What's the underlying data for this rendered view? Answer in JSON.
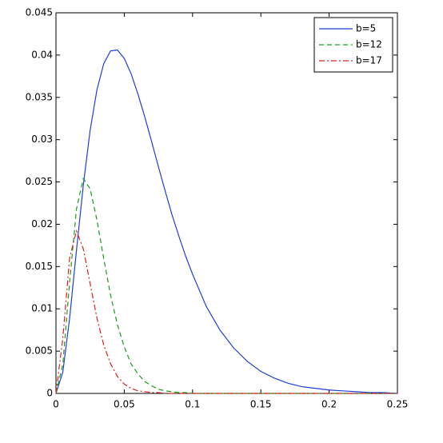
{
  "chart_data": {
    "type": "line",
    "x": [
      0,
      0.005,
      0.01,
      0.015,
      0.02,
      0.025,
      0.03,
      0.035,
      0.04,
      0.045,
      0.05,
      0.055,
      0.06,
      0.065,
      0.07,
      0.075,
      0.08,
      0.085,
      0.09,
      0.095,
      0.1,
      0.11,
      0.12,
      0.13,
      0.14,
      0.15,
      0.16,
      0.17,
      0.18,
      0.19,
      0.2,
      0.21,
      0.22,
      0.23,
      0.24,
      0.25
    ],
    "series": [
      {
        "name": "b=5",
        "color": "#1f3fd8",
        "dash": "solid",
        "values": [
          0,
          0.0025,
          0.0089,
          0.0169,
          0.0246,
          0.0311,
          0.0359,
          0.039,
          0.0405,
          0.0406,
          0.0396,
          0.0378,
          0.0354,
          0.0327,
          0.0298,
          0.0268,
          0.0239,
          0.0211,
          0.0186,
          0.0162,
          0.0141,
          0.0103,
          0.0075,
          0.0054,
          0.0038,
          0.0026,
          0.0018,
          0.0012,
          0.0008,
          0.0006,
          0.0004,
          0.0003,
          0.0002,
          0.0001,
          0.0001,
          0
        ]
      },
      {
        "name": "b=12",
        "color": "#1a9a1a",
        "dash": "dashed",
        "values": [
          0,
          0.0034,
          0.0132,
          0.0218,
          0.0254,
          0.0242,
          0.0205,
          0.0159,
          0.0116,
          0.0081,
          0.0055,
          0.0035,
          0.0023,
          0.0014,
          0.0009,
          0.0005,
          0.0003,
          0.0002,
          0.0001,
          0.0001,
          0,
          0,
          0,
          0,
          0,
          0,
          0,
          0,
          0,
          0,
          0,
          0,
          0,
          0,
          0,
          0
        ]
      },
      {
        "name": "b=17",
        "color": "#e0201a",
        "dash": "dashdot",
        "values": [
          0,
          0.0065,
          0.016,
          0.0192,
          0.0171,
          0.013,
          0.0089,
          0.0057,
          0.0035,
          0.002,
          0.0011,
          0.0006,
          0.0003,
          0.0002,
          0.0001,
          0.0001,
          0,
          0,
          0,
          0,
          0,
          0,
          0,
          0,
          0,
          0,
          0,
          0,
          0,
          0,
          0,
          0,
          0,
          0,
          0,
          0
        ]
      }
    ],
    "xlim": [
      0,
      0.25
    ],
    "xticks": [
      0,
      0.05,
      0.1,
      0.15,
      0.2,
      0.25
    ],
    "ylim": [
      0,
      0.045
    ],
    "yticks": [
      0,
      0.005,
      0.01,
      0.015,
      0.02,
      0.025,
      0.03,
      0.035,
      0.04,
      0.045
    ],
    "grid": false,
    "legend": "top-right"
  }
}
